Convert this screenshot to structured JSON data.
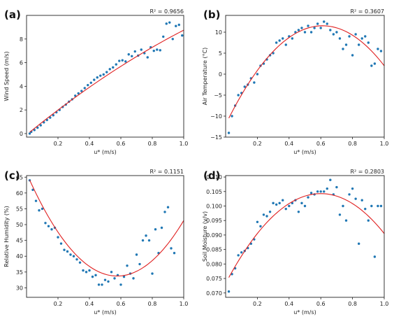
{
  "chart_data": [
    {
      "type": "scatter",
      "panel_label": "(a)",
      "r2_text": "R² = 0.9656",
      "xlabel": "u* (m/s)",
      "ylabel": "Wind Speed (m/s)",
      "xlim": [
        0.0,
        1.0
      ],
      "ylim": [
        -0.3,
        10.0
      ],
      "xticks": [
        0.2,
        0.4,
        0.6,
        0.8,
        1.0
      ],
      "xtick_labels": [
        "0.2",
        "0.4",
        "0.6",
        "0.8",
        "1.0"
      ],
      "yticks": [
        0,
        2,
        4,
        6,
        8
      ],
      "ytick_labels": [
        "0",
        "2",
        "4",
        "6",
        "8"
      ],
      "grid": false,
      "points": [
        [
          0.02,
          0.0
        ],
        [
          0.03,
          0.15
        ],
        [
          0.05,
          0.3
        ],
        [
          0.07,
          0.5
        ],
        [
          0.09,
          0.7
        ],
        [
          0.11,
          0.95
        ],
        [
          0.13,
          1.15
        ],
        [
          0.15,
          1.35
        ],
        [
          0.17,
          1.55
        ],
        [
          0.19,
          1.8
        ],
        [
          0.21,
          2.0
        ],
        [
          0.23,
          2.25
        ],
        [
          0.25,
          2.45
        ],
        [
          0.27,
          2.7
        ],
        [
          0.29,
          2.9
        ],
        [
          0.31,
          3.2
        ],
        [
          0.33,
          3.4
        ],
        [
          0.35,
          3.6
        ],
        [
          0.37,
          3.85
        ],
        [
          0.39,
          4.1
        ],
        [
          0.41,
          4.3
        ],
        [
          0.43,
          4.55
        ],
        [
          0.45,
          4.75
        ],
        [
          0.47,
          4.9
        ],
        [
          0.49,
          5.0
        ],
        [
          0.51,
          5.2
        ],
        [
          0.53,
          5.45
        ],
        [
          0.55,
          5.6
        ],
        [
          0.57,
          5.85
        ],
        [
          0.59,
          6.15
        ],
        [
          0.61,
          6.2
        ],
        [
          0.63,
          6.1
        ],
        [
          0.65,
          6.7
        ],
        [
          0.67,
          6.55
        ],
        [
          0.69,
          6.95
        ],
        [
          0.71,
          6.6
        ],
        [
          0.73,
          7.1
        ],
        [
          0.75,
          6.8
        ],
        [
          0.77,
          6.45
        ],
        [
          0.79,
          7.3
        ],
        [
          0.81,
          7.0
        ],
        [
          0.83,
          7.1
        ],
        [
          0.85,
          7.05
        ],
        [
          0.87,
          8.2
        ],
        [
          0.89,
          9.3
        ],
        [
          0.91,
          9.4
        ],
        [
          0.93,
          8.0
        ],
        [
          0.95,
          9.1
        ],
        [
          0.97,
          9.2
        ],
        [
          0.99,
          8.3
        ]
      ],
      "fit": {
        "model": "polynomial",
        "coefficients": [
          -0.1,
          10.85,
          -2.0
        ]
      }
    },
    {
      "type": "scatter",
      "panel_label": "(b)",
      "r2_text": "R² = 0.3607",
      "xlabel": "u* (m/s)",
      "ylabel": "Air Temperature (°C)",
      "xlim": [
        0.0,
        1.0
      ],
      "ylim": [
        -15.0,
        14.0
      ],
      "xticks": [
        0.2,
        0.4,
        0.6,
        0.8,
        1.0
      ],
      "xtick_labels": [
        "0.2",
        "0.4",
        "0.6",
        "0.8",
        "1.0"
      ],
      "yticks": [
        -15,
        -10,
        -5,
        0,
        5,
        10
      ],
      "ytick_labels": [
        "−15",
        "−10",
        "−5",
        "0",
        "5",
        "10"
      ],
      "grid": false,
      "points": [
        [
          0.02,
          -14.0
        ],
        [
          0.04,
          -10.0
        ],
        [
          0.06,
          -7.5
        ],
        [
          0.08,
          -5.0
        ],
        [
          0.1,
          -4.5
        ],
        [
          0.12,
          -3.0
        ],
        [
          0.14,
          -2.5
        ],
        [
          0.16,
          -1.0
        ],
        [
          0.18,
          -2.0
        ],
        [
          0.2,
          0.0
        ],
        [
          0.22,
          2.0
        ],
        [
          0.24,
          2.5
        ],
        [
          0.26,
          3.5
        ],
        [
          0.28,
          4.5
        ],
        [
          0.3,
          5.0
        ],
        [
          0.32,
          7.5
        ],
        [
          0.34,
          8.0
        ],
        [
          0.36,
          8.5
        ],
        [
          0.38,
          7.0
        ],
        [
          0.4,
          9.0
        ],
        [
          0.42,
          8.5
        ],
        [
          0.44,
          10.0
        ],
        [
          0.46,
          10.5
        ],
        [
          0.48,
          11.0
        ],
        [
          0.5,
          10.0
        ],
        [
          0.52,
          11.5
        ],
        [
          0.54,
          10.0
        ],
        [
          0.56,
          11.0
        ],
        [
          0.58,
          12.0
        ],
        [
          0.6,
          11.0
        ],
        [
          0.62,
          12.5
        ],
        [
          0.64,
          12.0
        ],
        [
          0.66,
          10.5
        ],
        [
          0.68,
          9.5
        ],
        [
          0.7,
          10.0
        ],
        [
          0.72,
          8.5
        ],
        [
          0.74,
          6.0
        ],
        [
          0.76,
          7.0
        ],
        [
          0.78,
          9.0
        ],
        [
          0.8,
          4.5
        ],
        [
          0.82,
          9.5
        ],
        [
          0.84,
          7.0
        ],
        [
          0.86,
          8.5
        ],
        [
          0.88,
          9.0
        ],
        [
          0.9,
          7.5
        ],
        [
          0.92,
          2.0
        ],
        [
          0.94,
          2.5
        ],
        [
          0.96,
          6.0
        ],
        [
          0.98,
          5.5
        ]
      ],
      "fit": {
        "model": "polynomial",
        "coefficients": [
          -12.0,
          77.0,
          -63.0
        ]
      }
    },
    {
      "type": "scatter",
      "panel_label": "(c)",
      "r2_text": "R² = 0.1151",
      "xlabel": "u* (m/s)",
      "ylabel": "Relative Humidity (%)",
      "xlim": [
        0.0,
        1.0
      ],
      "ylim": [
        27.0,
        65.5
      ],
      "xticks": [
        0.2,
        0.4,
        0.6,
        0.8,
        1.0
      ],
      "xtick_labels": [
        "0.2",
        "0.4",
        "0.6",
        "0.8",
        "1.0"
      ],
      "yticks": [
        30,
        35,
        40,
        45,
        50,
        55,
        60,
        65
      ],
      "ytick_labels": [
        "30",
        "35",
        "40",
        "45",
        "50",
        "55",
        "60",
        "65"
      ],
      "grid": false,
      "points": [
        [
          0.02,
          64.0
        ],
        [
          0.04,
          61.0
        ],
        [
          0.06,
          57.5
        ],
        [
          0.08,
          54.5
        ],
        [
          0.1,
          55.0
        ],
        [
          0.12,
          50.5
        ],
        [
          0.14,
          49.5
        ],
        [
          0.16,
          48.5
        ],
        [
          0.18,
          49.0
        ],
        [
          0.2,
          46.0
        ],
        [
          0.22,
          44.0
        ],
        [
          0.24,
          42.0
        ],
        [
          0.26,
          41.5
        ],
        [
          0.28,
          40.5
        ],
        [
          0.3,
          40.0
        ],
        [
          0.32,
          39.0
        ],
        [
          0.34,
          38.0
        ],
        [
          0.36,
          35.5
        ],
        [
          0.38,
          35.0
        ],
        [
          0.4,
          35.5
        ],
        [
          0.42,
          33.5
        ],
        [
          0.44,
          34.0
        ],
        [
          0.46,
          31.0
        ],
        [
          0.48,
          31.0
        ],
        [
          0.5,
          32.5
        ],
        [
          0.52,
          32.0
        ],
        [
          0.54,
          35.0
        ],
        [
          0.56,
          33.0
        ],
        [
          0.58,
          34.0
        ],
        [
          0.6,
          31.0
        ],
        [
          0.62,
          33.5
        ],
        [
          0.64,
          37.0
        ],
        [
          0.66,
          34.5
        ],
        [
          0.68,
          33.0
        ],
        [
          0.7,
          40.5
        ],
        [
          0.72,
          37.5
        ],
        [
          0.74,
          45.0
        ],
        [
          0.76,
          46.5
        ],
        [
          0.78,
          45.0
        ],
        [
          0.8,
          34.5
        ],
        [
          0.82,
          48.5
        ],
        [
          0.84,
          41.0
        ],
        [
          0.86,
          49.0
        ],
        [
          0.88,
          54.0
        ],
        [
          0.9,
          55.5
        ],
        [
          0.92,
          42.5
        ],
        [
          0.94,
          41.0
        ]
      ],
      "fit": {
        "model": "polynomial",
        "coefficients": [
          66.3,
          -113.0,
          98.0
        ]
      }
    },
    {
      "type": "scatter",
      "panel_label": "(d)",
      "r2_text": "R² = 0.2803",
      "xlabel": "u* (m/s)",
      "ylabel": "Soil Moisture (v/v)",
      "xlim": [
        0.0,
        1.0
      ],
      "ylim": [
        0.0685,
        0.1105
      ],
      "xticks": [
        0.2,
        0.4,
        0.6,
        0.8,
        1.0
      ],
      "xtick_labels": [
        "0.2",
        "0.4",
        "0.6",
        "0.8",
        "1.0"
      ],
      "yticks": [
        0.07,
        0.075,
        0.08,
        0.085,
        0.09,
        0.095,
        0.1,
        0.105,
        0.11
      ],
      "ytick_labels": [
        "0.070",
        "0.075",
        "0.080",
        "0.085",
        "0.090",
        "0.095",
        "0.100",
        "0.105",
        "0.110"
      ],
      "grid": false,
      "points": [
        [
          0.02,
          0.0705
        ],
        [
          0.04,
          0.0765
        ],
        [
          0.06,
          0.0785
        ],
        [
          0.08,
          0.083
        ],
        [
          0.1,
          0.084
        ],
        [
          0.12,
          0.0845
        ],
        [
          0.14,
          0.0855
        ],
        [
          0.16,
          0.087
        ],
        [
          0.18,
          0.0885
        ],
        [
          0.2,
          0.0945
        ],
        [
          0.22,
          0.093
        ],
        [
          0.24,
          0.097
        ],
        [
          0.26,
          0.0965
        ],
        [
          0.28,
          0.098
        ],
        [
          0.3,
          0.101
        ],
        [
          0.32,
          0.1005
        ],
        [
          0.34,
          0.101
        ],
        [
          0.36,
          0.102
        ],
        [
          0.38,
          0.099
        ],
        [
          0.4,
          0.1
        ],
        [
          0.42,
          0.101
        ],
        [
          0.44,
          0.102
        ],
        [
          0.46,
          0.098
        ],
        [
          0.48,
          0.101
        ],
        [
          0.5,
          0.1
        ],
        [
          0.52,
          0.103
        ],
        [
          0.54,
          0.1045
        ],
        [
          0.56,
          0.104
        ],
        [
          0.58,
          0.105
        ],
        [
          0.6,
          0.105
        ],
        [
          0.62,
          0.105
        ],
        [
          0.64,
          0.106
        ],
        [
          0.66,
          0.109
        ],
        [
          0.68,
          0.104
        ],
        [
          0.7,
          0.1065
        ],
        [
          0.72,
          0.097
        ],
        [
          0.74,
          0.1
        ],
        [
          0.76,
          0.095
        ],
        [
          0.78,
          0.104
        ],
        [
          0.8,
          0.106
        ],
        [
          0.82,
          0.1025
        ],
        [
          0.84,
          0.087
        ],
        [
          0.86,
          0.102
        ],
        [
          0.88,
          0.099
        ],
        [
          0.9,
          0.095
        ],
        [
          0.92,
          0.1
        ],
        [
          0.94,
          0.0825
        ],
        [
          0.96,
          0.1
        ],
        [
          0.98,
          0.1
        ]
      ],
      "fit": {
        "model": "polynomial",
        "coefficients": [
          0.0733,
          0.1033,
          -0.0861
        ]
      }
    }
  ]
}
